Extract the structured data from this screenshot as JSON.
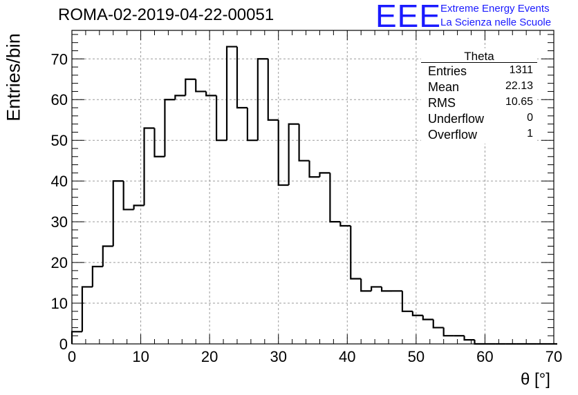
{
  "title": "ROMA-02-2019-04-22-00051",
  "logo": {
    "mark": "EEE",
    "line1": "Extreme Energy Events",
    "line2": "La Scienza nelle Scuole",
    "color": "#1a1aff"
  },
  "stats": {
    "title": "Theta",
    "rows": [
      {
        "label": "Entries",
        "value": "1311"
      },
      {
        "label": "Mean",
        "value": "22.13"
      },
      {
        "label": "RMS",
        "value": "10.65"
      },
      {
        "label": "Underflow",
        "value": "0"
      },
      {
        "label": "Overflow",
        "value": "1"
      }
    ]
  },
  "chart_data": {
    "type": "bar",
    "style": "step-histogram",
    "title": "ROMA-02-2019-04-22-00051",
    "xlabel": "θ [°]",
    "ylabel": "Entries/bin",
    "xlim": [
      0,
      70
    ],
    "ylim": [
      0,
      77
    ],
    "bin_width": 1.5,
    "bin_edges_start": 0,
    "values": [
      3,
      14,
      19,
      24,
      40,
      33,
      34,
      53,
      46,
      60,
      61,
      65,
      62,
      61,
      50,
      73,
      58,
      50,
      70,
      55,
      39,
      54,
      45,
      41,
      42,
      30,
      29,
      16,
      13,
      14,
      13,
      13,
      8,
      7,
      6,
      4,
      2,
      2,
      1,
      0,
      0,
      0,
      0,
      0,
      0,
      0,
      0
    ],
    "x_ticks": [
      0,
      10,
      20,
      30,
      40,
      50,
      60,
      70
    ],
    "x_tick_labels": [
      "0",
      "10",
      "20",
      "30",
      "40",
      "50",
      "60",
      "70"
    ],
    "y_ticks": [
      0,
      10,
      20,
      30,
      40,
      50,
      60,
      70
    ],
    "y_tick_labels": [
      "0",
      "10",
      "20",
      "30",
      "40",
      "50",
      "60",
      "70"
    ],
    "grid": true,
    "line_color": "#000000"
  }
}
